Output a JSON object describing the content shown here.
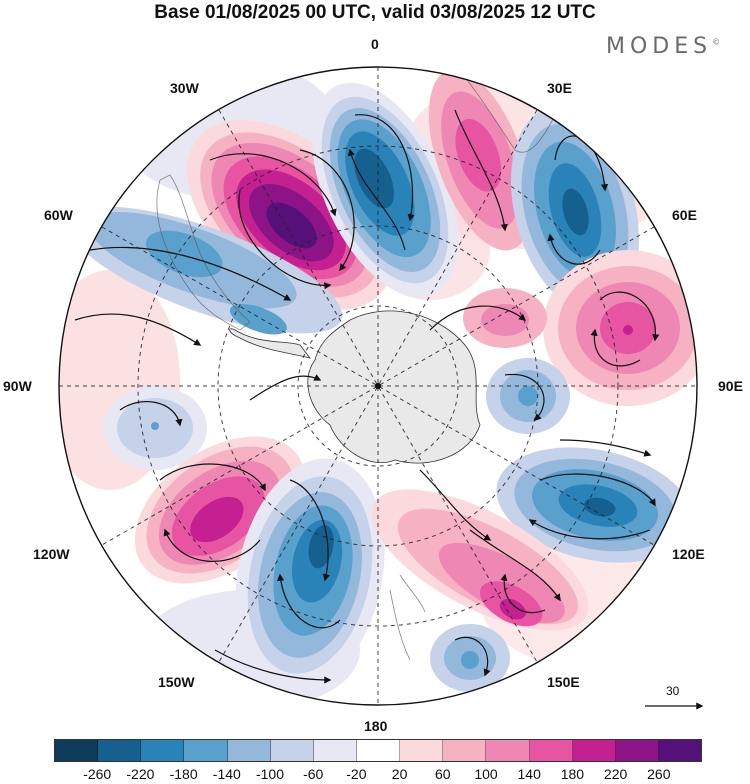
{
  "title": "Base 01/08/2025 00 UTC, valid 03/08/2025 12 UTC",
  "brand": "MODES",
  "brand_mark": "©",
  "longitude_labels": {
    "l0": "0",
    "l30e": "30E",
    "l60e": "60E",
    "l90e": "90E",
    "l120e": "120E",
    "l150e": "150E",
    "l180": "180",
    "l150w": "150W",
    "l120w": "120W",
    "l90w": "90W",
    "l60w": "60W",
    "l30w": "30W"
  },
  "vector_scale_label": "30",
  "colorbar": {
    "ticks": [
      "-260",
      "-220",
      "-180",
      "-140",
      "-100",
      "-60",
      "-20",
      "20",
      "60",
      "100",
      "140",
      "180",
      "220",
      "260"
    ],
    "colors": [
      "#0e3a5c",
      "#16608f",
      "#2a83b8",
      "#5aa0cc",
      "#93b8dc",
      "#c6d2e9",
      "#e8e8f4",
      "#ffffff",
      "#fbd9dc",
      "#f6b2c2",
      "#ef87b4",
      "#e654a2",
      "#c42091",
      "#8c1486",
      "#56107a"
    ]
  },
  "colors": {
    "land": "#e9e9e9",
    "neutral": "#ffffff",
    "border": "#000000"
  }
}
